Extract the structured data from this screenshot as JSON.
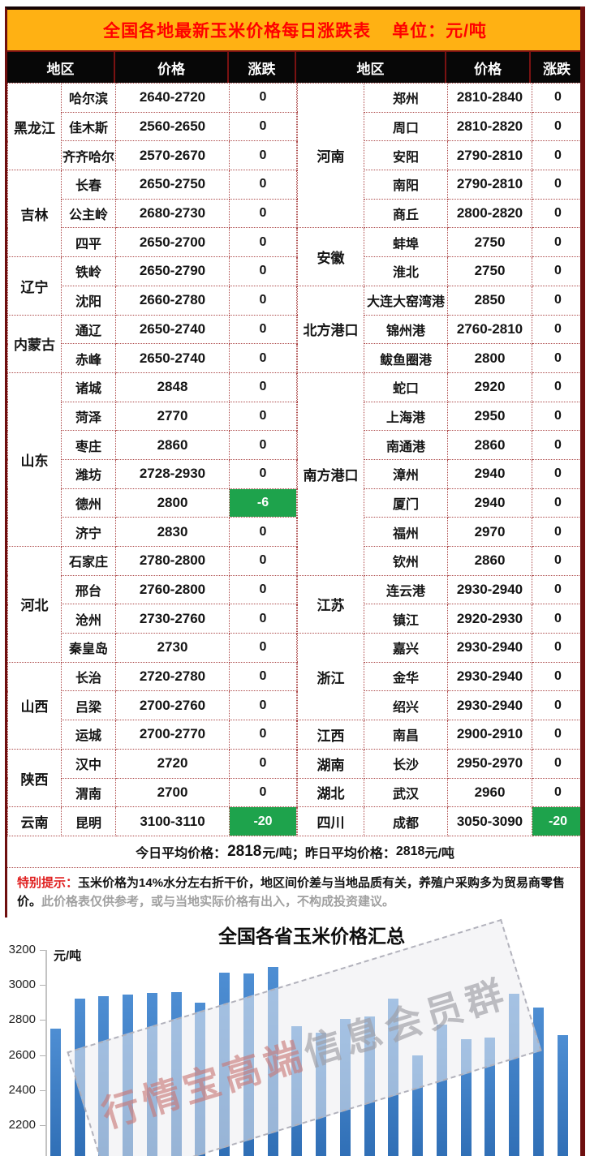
{
  "header": {
    "title": "全国各地最新玉米价格每日涨跌表",
    "unit": "单位：元/吨"
  },
  "columns": {
    "region": "地区",
    "price": "价格",
    "change": "涨跌"
  },
  "table": {
    "left_groups": [
      {
        "name": "黑龙江",
        "rows": [
          {
            "city": "哈尔滨",
            "price": "2640-2720",
            "change": "0",
            "down": false
          },
          {
            "city": "佳木斯",
            "price": "2560-2650",
            "change": "0",
            "down": false
          },
          {
            "city": "齐齐哈尔",
            "price": "2570-2670",
            "change": "0",
            "down": false
          }
        ]
      },
      {
        "name": "吉林",
        "rows": [
          {
            "city": "长春",
            "price": "2650-2750",
            "change": "0",
            "down": false
          },
          {
            "city": "公主岭",
            "price": "2680-2730",
            "change": "0",
            "down": false
          },
          {
            "city": "四平",
            "price": "2650-2700",
            "change": "0",
            "down": false
          }
        ]
      },
      {
        "name": "辽宁",
        "rows": [
          {
            "city": "铁岭",
            "price": "2650-2790",
            "change": "0",
            "down": false
          },
          {
            "city": "沈阳",
            "price": "2660-2780",
            "change": "0",
            "down": false
          }
        ]
      },
      {
        "name": "内蒙古",
        "rows": [
          {
            "city": "通辽",
            "price": "2650-2740",
            "change": "0",
            "down": false
          },
          {
            "city": "赤峰",
            "price": "2650-2740",
            "change": "0",
            "down": false
          }
        ]
      },
      {
        "name": "山东",
        "rows": [
          {
            "city": "诸城",
            "price": "2848",
            "change": "0",
            "down": false
          },
          {
            "city": "菏泽",
            "price": "2770",
            "change": "0",
            "down": false
          },
          {
            "city": "枣庄",
            "price": "2860",
            "change": "0",
            "down": false
          },
          {
            "city": "潍坊",
            "price": "2728-2930",
            "change": "0",
            "down": false
          },
          {
            "city": "德州",
            "price": "2800",
            "change": "-6",
            "down": true
          },
          {
            "city": "济宁",
            "price": "2830",
            "change": "0",
            "down": false
          }
        ]
      },
      {
        "name": "河北",
        "rows": [
          {
            "city": "石家庄",
            "price": "2780-2800",
            "change": "0",
            "down": false
          },
          {
            "city": "邢台",
            "price": "2760-2800",
            "change": "0",
            "down": false
          },
          {
            "city": "沧州",
            "price": "2730-2760",
            "change": "0",
            "down": false
          },
          {
            "city": "秦皇岛",
            "price": "2730",
            "change": "0",
            "down": false
          }
        ]
      },
      {
        "name": "山西",
        "rows": [
          {
            "city": "长治",
            "price": "2720-2780",
            "change": "0",
            "down": false
          },
          {
            "city": "吕梁",
            "price": "2700-2760",
            "change": "0",
            "down": false
          },
          {
            "city": "运城",
            "price": "2700-2770",
            "change": "0",
            "down": false
          }
        ]
      },
      {
        "name": "陕西",
        "rows": [
          {
            "city": "汉中",
            "price": "2720",
            "change": "0",
            "down": false
          },
          {
            "city": "渭南",
            "price": "2700",
            "change": "0",
            "down": false
          }
        ]
      },
      {
        "name": "云南",
        "rows": [
          {
            "city": "昆明",
            "price": "3100-3110",
            "change": "-20",
            "down": true
          }
        ]
      }
    ],
    "right_groups": [
      {
        "name": "河南",
        "rows": [
          {
            "city": "郑州",
            "price": "2810-2840",
            "change": "0",
            "down": false
          },
          {
            "city": "周口",
            "price": "2810-2820",
            "change": "0",
            "down": false
          },
          {
            "city": "安阳",
            "price": "2790-2810",
            "change": "0",
            "down": false
          },
          {
            "city": "南阳",
            "price": "2790-2810",
            "change": "0",
            "down": false
          },
          {
            "city": "商丘",
            "price": "2800-2820",
            "change": "0",
            "down": false
          }
        ]
      },
      {
        "name": "安徽",
        "rows": [
          {
            "city": "蚌埠",
            "price": "2750",
            "change": "0",
            "down": false
          },
          {
            "city": "淮北",
            "price": "2750",
            "change": "0",
            "down": false
          }
        ]
      },
      {
        "name": "北方港口",
        "rows": [
          {
            "city": "大连大窑湾港",
            "price": "2850",
            "change": "0",
            "down": false
          },
          {
            "city": "锦州港",
            "price": "2760-2810",
            "change": "0",
            "down": false
          },
          {
            "city": "鲅鱼圈港",
            "price": "2800",
            "change": "0",
            "down": false
          }
        ]
      },
      {
        "name": "南方港口",
        "rows": [
          {
            "city": "蛇口",
            "price": "2920",
            "change": "0",
            "down": false
          },
          {
            "city": "上海港",
            "price": "2950",
            "change": "0",
            "down": false
          },
          {
            "city": "南通港",
            "price": "2860",
            "change": "0",
            "down": false
          },
          {
            "city": "漳州",
            "price": "2940",
            "change": "0",
            "down": false
          },
          {
            "city": "厦门",
            "price": "2940",
            "change": "0",
            "down": false
          },
          {
            "city": "福州",
            "price": "2970",
            "change": "0",
            "down": false
          },
          {
            "city": "钦州",
            "price": "2860",
            "change": "0",
            "down": false
          }
        ]
      },
      {
        "name": "江苏",
        "rows": [
          {
            "city": "连云港",
            "price": "2930-2940",
            "change": "0",
            "down": false
          },
          {
            "city": "镇江",
            "price": "2920-2930",
            "change": "0",
            "down": false
          }
        ]
      },
      {
        "name": "浙江",
        "rows": [
          {
            "city": "嘉兴",
            "price": "2930-2940",
            "change": "0",
            "down": false
          },
          {
            "city": "金华",
            "price": "2930-2940",
            "change": "0",
            "down": false
          },
          {
            "city": "绍兴",
            "price": "2930-2940",
            "change": "0",
            "down": false
          }
        ]
      },
      {
        "name": "江西",
        "rows": [
          {
            "city": "南昌",
            "price": "2900-2910",
            "change": "0",
            "down": false
          }
        ]
      },
      {
        "name": "湖南",
        "rows": [
          {
            "city": "长沙",
            "price": "2950-2970",
            "change": "0",
            "down": false
          }
        ]
      },
      {
        "name": "湖北",
        "rows": [
          {
            "city": "武汉",
            "price": "2960",
            "change": "0",
            "down": false
          }
        ]
      },
      {
        "name": "四川",
        "rows": [
          {
            "city": "成都",
            "price": "3050-3090",
            "change": "-20",
            "down": true
          }
        ]
      }
    ]
  },
  "summary": {
    "today_label": "今日平均价格：",
    "today_value": "2818",
    "today_suffix": "元/吨；",
    "yesterday_label": "昨日平均价格：",
    "yesterday_value": "2818",
    "yesterday_suffix": "元/吨"
  },
  "notice": {
    "label": "特别提示：",
    "main": "玉米价格为14%水分左右折干价，地区间价差与当地品质有关，养殖户采购多为贸易商零售价。",
    "disclaimer": "此价格表仅供参考，或与当地实际价格有出入，不构成投资建议。"
  },
  "chart_data": {
    "type": "bar",
    "title": "全国各省玉米价格汇总",
    "ylabel": "元/吨",
    "y_ticks": [
      3200,
      3000,
      2800,
      2600,
      2400,
      2200
    ],
    "ylim": [
      2000,
      3200
    ],
    "grid": false,
    "legend": false,
    "x_axis_labels_visible": false,
    "values": [
      2750,
      2920,
      2935,
      2945,
      2955,
      2960,
      2900,
      3070,
      3065,
      3105,
      2765,
      2730,
      2805,
      2820,
      2920,
      2600,
      2775,
      2690,
      2700,
      2950,
      2870,
      2715
    ],
    "watermark": "行情宝高端信息会员群",
    "bar_color": "#3a7ac2"
  },
  "colors": {
    "banner_bg": "#ffb113",
    "banner_text": "#ff0000",
    "header_bg": "#070707",
    "down_green": "#1ea34c",
    "frame": "#6e0f0f",
    "grid_dots": "#ad4a4a",
    "disclaimer_gray": "#a0a0a0"
  }
}
